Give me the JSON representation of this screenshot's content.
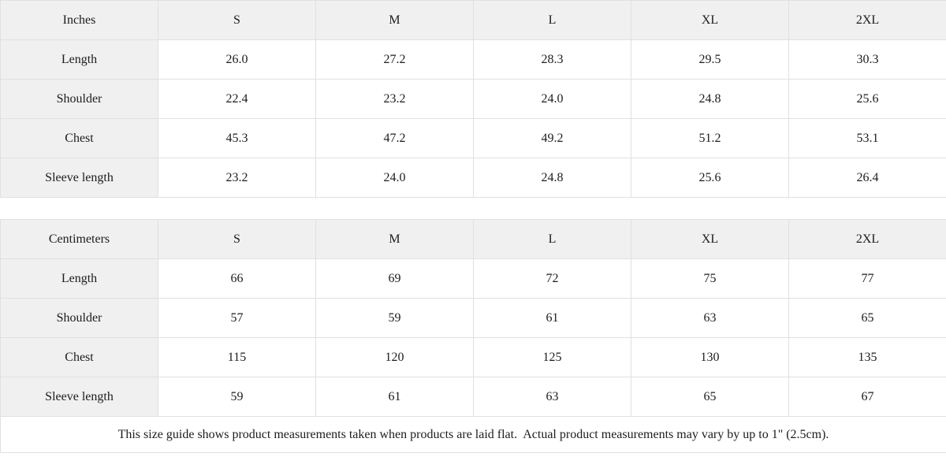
{
  "tables": [
    {
      "unit_label": "Inches",
      "sizes": [
        "S",
        "M",
        "L",
        "XL",
        "2XL"
      ],
      "rows": [
        {
          "label": "Length",
          "values": [
            "26.0",
            "27.2",
            "28.3",
            "29.5",
            "30.3"
          ]
        },
        {
          "label": "Shoulder",
          "values": [
            "22.4",
            "23.2",
            "24.0",
            "24.8",
            "25.6"
          ]
        },
        {
          "label": "Chest",
          "values": [
            "45.3",
            "47.2",
            "49.2",
            "51.2",
            "53.1"
          ]
        },
        {
          "label": "Sleeve length",
          "values": [
            "23.2",
            "24.0",
            "24.8",
            "25.6",
            "26.4"
          ]
        }
      ]
    },
    {
      "unit_label": "Centimeters",
      "sizes": [
        "S",
        "M",
        "L",
        "XL",
        "2XL"
      ],
      "rows": [
        {
          "label": "Length",
          "values": [
            "66",
            "69",
            "72",
            "75",
            "77"
          ]
        },
        {
          "label": "Shoulder",
          "values": [
            "57",
            "59",
            "61",
            "63",
            "65"
          ]
        },
        {
          "label": "Chest",
          "values": [
            "115",
            "120",
            "125",
            "130",
            "135"
          ]
        },
        {
          "label": "Sleeve length",
          "values": [
            "59",
            "61",
            "63",
            "65",
            "67"
          ]
        }
      ]
    }
  ],
  "footer": {
    "note": "This size guide shows product measurements taken when products are laid flat.  Actual product measurements may vary by up to 1\" (2.5cm)."
  },
  "colors": {
    "header_bg": "#f0f0f0",
    "cell_bg": "#ffffff",
    "border": "#e0e0e0",
    "text": "#1c1c1c"
  }
}
